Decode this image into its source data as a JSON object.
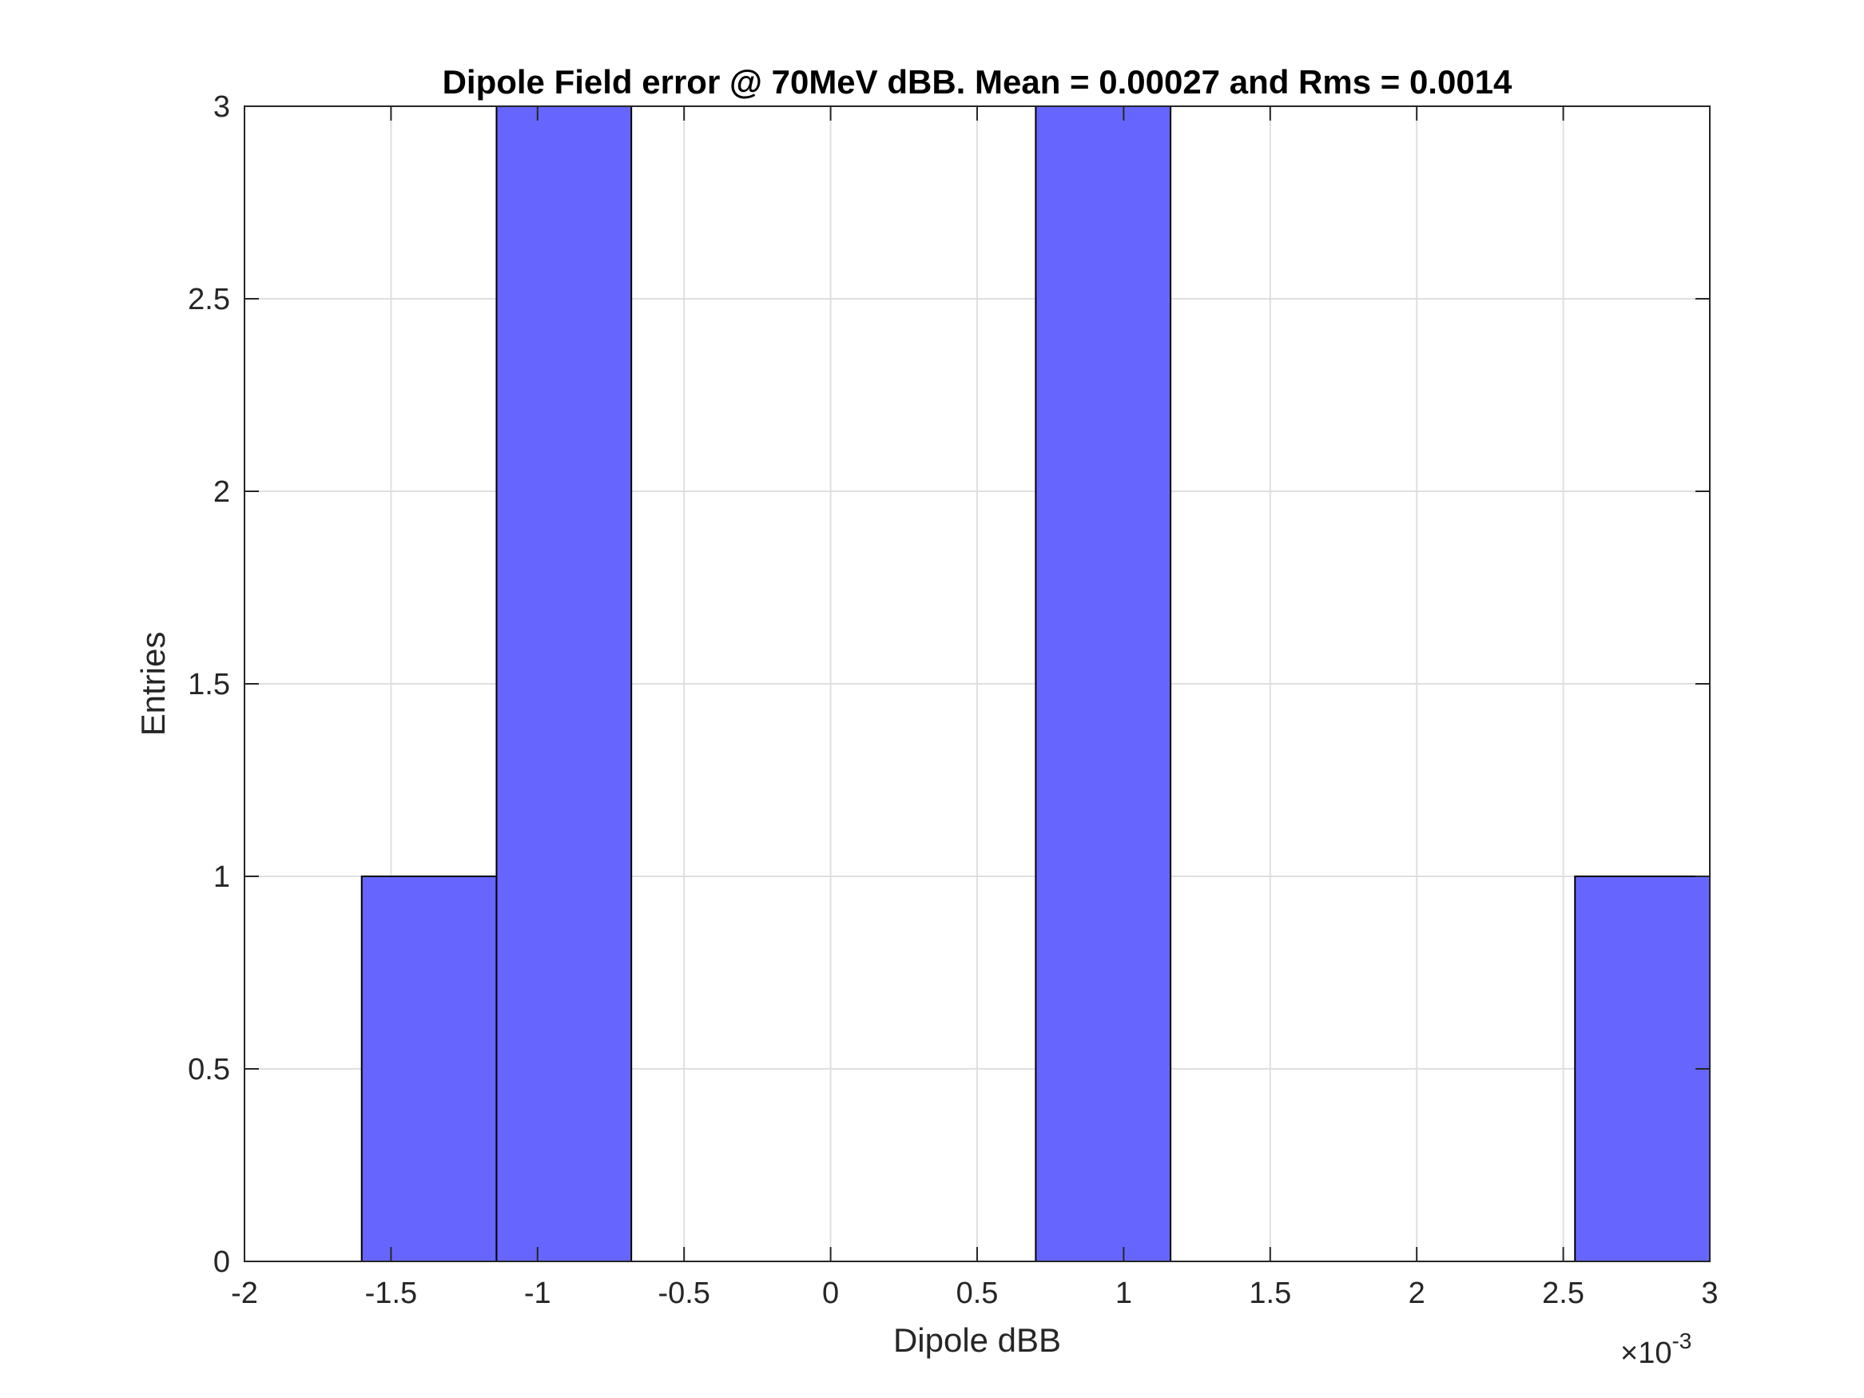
{
  "chart_data": {
    "type": "bar",
    "subtype": "histogram",
    "title": "Dipole Field error @ 70MeV dBB. Mean = 0.00027 and Rms = 0.0014",
    "xlabel": "Dipole dBB",
    "ylabel": "Entries",
    "x_exponent_label": "×10",
    "x_exponent_power": "-3",
    "xlim": [
      -2,
      3
    ],
    "ylim": [
      0,
      3
    ],
    "x_unit_scale": 0.001,
    "x_ticks": [
      -2,
      -1.5,
      -1,
      -0.5,
      0,
      0.5,
      1,
      1.5,
      2,
      2.5,
      3
    ],
    "x_tick_labels": [
      "-2",
      "-1.5",
      "-1",
      "-0.5",
      "0",
      "0.5",
      "1",
      "1.5",
      "2",
      "2.5",
      "3"
    ],
    "y_ticks": [
      0,
      0.5,
      1,
      1.5,
      2,
      2.5,
      3
    ],
    "y_tick_labels": [
      "0",
      "0.5",
      "1",
      "1.5",
      "2",
      "2.5",
      "3"
    ],
    "bin_edges_e3": [
      -1.6,
      -1.14,
      -0.68,
      -0.22,
      0.24,
      0.7,
      1.16,
      1.62,
      2.08,
      2.54,
      3.0
    ],
    "values": [
      1,
      3,
      0,
      0,
      0,
      3,
      0,
      0,
      0,
      1
    ],
    "grid": true,
    "bar_color": "#6666ff",
    "bar_edge_color": "#000000"
  }
}
